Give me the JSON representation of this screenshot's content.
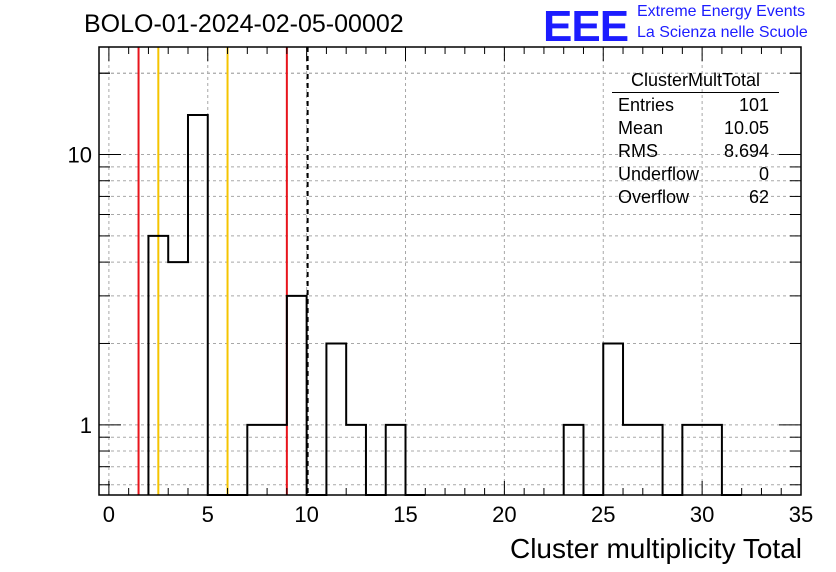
{
  "header": {
    "run_title": "BOLO-01-2024-02-05-00002",
    "logo_mark": "EEE",
    "logo_line1": "Extreme Energy Events",
    "logo_line2": "La Scienza nelle Scuole"
  },
  "stats_box": {
    "title": "ClusterMultTotal",
    "rows": [
      {
        "label": "Entries",
        "value": "101"
      },
      {
        "label": "Mean",
        "value": "10.05"
      },
      {
        "label": "RMS",
        "value": "8.694"
      },
      {
        "label": "Underflow",
        "value": "0"
      },
      {
        "label": "Overflow",
        "value": "62"
      }
    ]
  },
  "chart_data": {
    "type": "bar",
    "style": "step-histogram",
    "xlabel": "Cluster multiplicity Total",
    "ylabel": "",
    "xlim": [
      -0.5,
      35.0
    ],
    "ylim": [
      0.55,
      25
    ],
    "yscale": "log",
    "grid": true,
    "bin_width": 1,
    "x_ticks": [
      0,
      5,
      10,
      15,
      20,
      25,
      30,
      35
    ],
    "y_ticks": [
      1,
      10
    ],
    "bins": [
      {
        "x": 2.5,
        "value": 5
      },
      {
        "x": 3.5,
        "value": 4
      },
      {
        "x": 4.5,
        "value": 14
      },
      {
        "x": 5.5,
        "value": 0
      },
      {
        "x": 6.5,
        "value": 0
      },
      {
        "x": 7.5,
        "value": 1
      },
      {
        "x": 8.5,
        "value": 1
      },
      {
        "x": 9.5,
        "value": 3
      },
      {
        "x": 10.5,
        "value": 0
      },
      {
        "x": 11.5,
        "value": 2
      },
      {
        "x": 12.5,
        "value": 1
      },
      {
        "x": 13.5,
        "value": 0
      },
      {
        "x": 14.5,
        "value": 1
      },
      {
        "x": 15.5,
        "value": 0
      },
      {
        "x": 23.5,
        "value": 1
      },
      {
        "x": 24.5,
        "value": 0
      },
      {
        "x": 25.5,
        "value": 2
      },
      {
        "x": 26.5,
        "value": 1
      },
      {
        "x": 27.5,
        "value": 1
      },
      {
        "x": 28.5,
        "value": 0
      },
      {
        "x": 29.5,
        "value": 1
      },
      {
        "x": 30.5,
        "value": 1
      },
      {
        "x": 31.5,
        "value": 0
      }
    ],
    "reference_lines": [
      {
        "x": 1.5,
        "color": "#e8141c",
        "style": "solid"
      },
      {
        "x": 2.5,
        "color": "#f5c400",
        "style": "solid"
      },
      {
        "x": 6.0,
        "color": "#f5c400",
        "style": "solid"
      },
      {
        "x": 9.0,
        "color": "#e8141c",
        "style": "solid"
      },
      {
        "x": 10.05,
        "color": "#000000",
        "style": "dashed"
      }
    ]
  }
}
